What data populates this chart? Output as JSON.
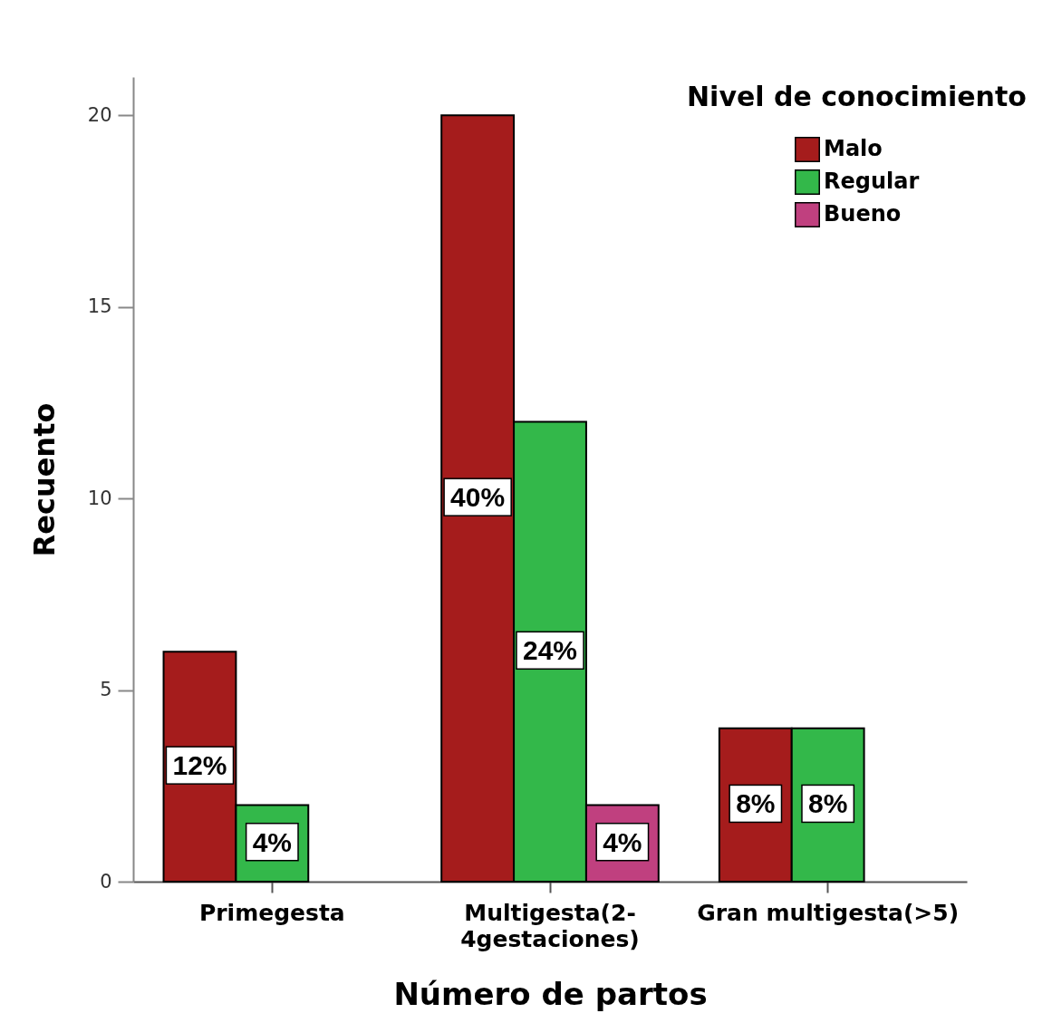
{
  "chart_data": {
    "type": "bar",
    "xlabel": "Número de partos",
    "ylabel": "Recuento",
    "legend_title": "Nivel de conocimiento",
    "categories": [
      "Primegesta",
      "Multigesta(2-4gestaciones)",
      "Gran multigesta(>5)"
    ],
    "series": [
      {
        "name": "Malo",
        "color": "#a51c1c",
        "values": [
          6,
          20,
          4
        ]
      },
      {
        "name": "Regular",
        "color": "#33b84a",
        "values": [
          2,
          12,
          4
        ]
      },
      {
        "name": "Bueno",
        "color": "#c0407f",
        "values": [
          null,
          2,
          null
        ]
      }
    ],
    "value_labels": [
      [
        "12%",
        "40%",
        "8%"
      ],
      [
        "4%",
        "24%",
        "8%"
      ],
      [
        null,
        "4%",
        null
      ]
    ],
    "ylim": [
      0,
      21
    ],
    "yticks": [
      0,
      5,
      10,
      15,
      20
    ],
    "grid": false,
    "legend": "top right"
  }
}
